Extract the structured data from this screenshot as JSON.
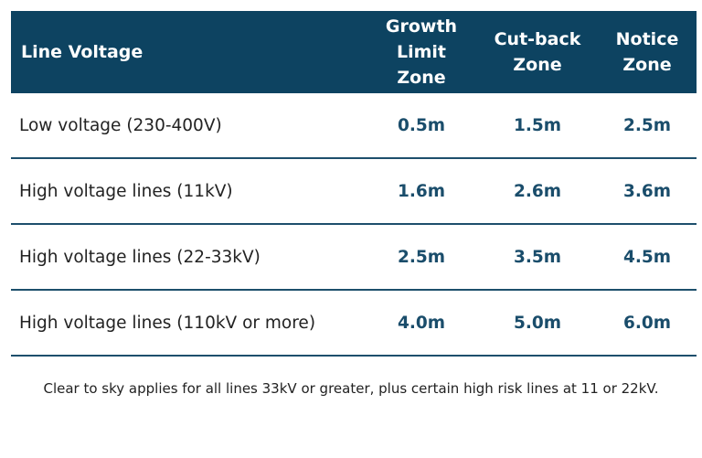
{
  "table": {
    "header": [
      "Line Voltage",
      "Growth Limit Zone",
      "Cut-back Zone",
      "Notice Zone"
    ],
    "rows": [
      [
        "Low voltage (230-400V)",
        "0.5m",
        "1.5m",
        "2.5m"
      ],
      [
        "High voltage lines (11kV)",
        "1.6m",
        "2.6m",
        "3.6m"
      ],
      [
        "High voltage lines (22-33kV)",
        "2.5m",
        "3.5m",
        "4.5m"
      ],
      [
        "High voltage lines (110kV or more)",
        "4.0m",
        "5.0m",
        "6.0m"
      ]
    ]
  },
  "footnote": "Clear to sky applies for all lines 33kV or greater, plus certain high risk lines at 11 or 22kV."
}
